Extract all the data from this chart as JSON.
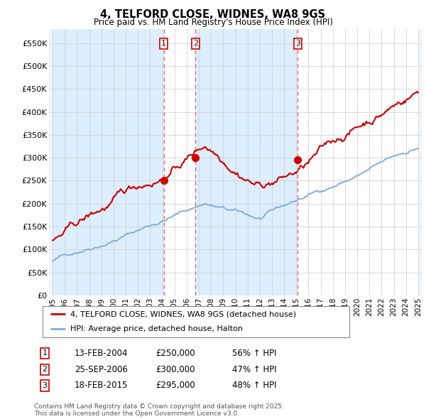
{
  "title": "4, TELFORD CLOSE, WIDNES, WA8 9GS",
  "subtitle": "Price paid vs. HM Land Registry's House Price Index (HPI)",
  "ylim": [
    0,
    580000
  ],
  "yticks": [
    0,
    50000,
    100000,
    150000,
    200000,
    250000,
    300000,
    350000,
    400000,
    450000,
    500000,
    550000
  ],
  "ytick_labels": [
    "£0",
    "£50K",
    "£100K",
    "£150K",
    "£200K",
    "£250K",
    "£300K",
    "£350K",
    "£400K",
    "£450K",
    "£500K",
    "£550K"
  ],
  "hpi_color": "#7aacdc",
  "price_color": "#cc0000",
  "vline_color": "#ee6666",
  "shade_color": "#ddeeff",
  "grid_color": "#cccccc",
  "bg_color": "#ffffff",
  "plot_bg_color": "#f0f4fa",
  "legend_label_price": "4, TELFORD CLOSE, WIDNES, WA8 9GS (detached house)",
  "legend_label_hpi": "HPI: Average price, detached house, Halton",
  "sales": [
    {
      "num": 1,
      "date_x": 2004.12,
      "price": 250000
    },
    {
      "num": 2,
      "date_x": 2006.73,
      "price": 300000
    },
    {
      "num": 3,
      "date_x": 2015.12,
      "price": 295000
    }
  ],
  "footnote": "Contains HM Land Registry data © Crown copyright and database right 2025.\nThis data is licensed under the Open Government Licence v3.0.",
  "table_rows": [
    {
      "num": "1",
      "date": "13-FEB-2004",
      "price": "£250,000",
      "pct": "56% ↑ HPI"
    },
    {
      "num": "2",
      "date": "25-SEP-2006",
      "price": "£300,000",
      "pct": "47% ↑ HPI"
    },
    {
      "num": "3",
      "date": "18-FEB-2015",
      "price": "£295,000",
      "pct": "48% ↑ HPI"
    }
  ],
  "xmin": 1995,
  "xmax": 2025
}
